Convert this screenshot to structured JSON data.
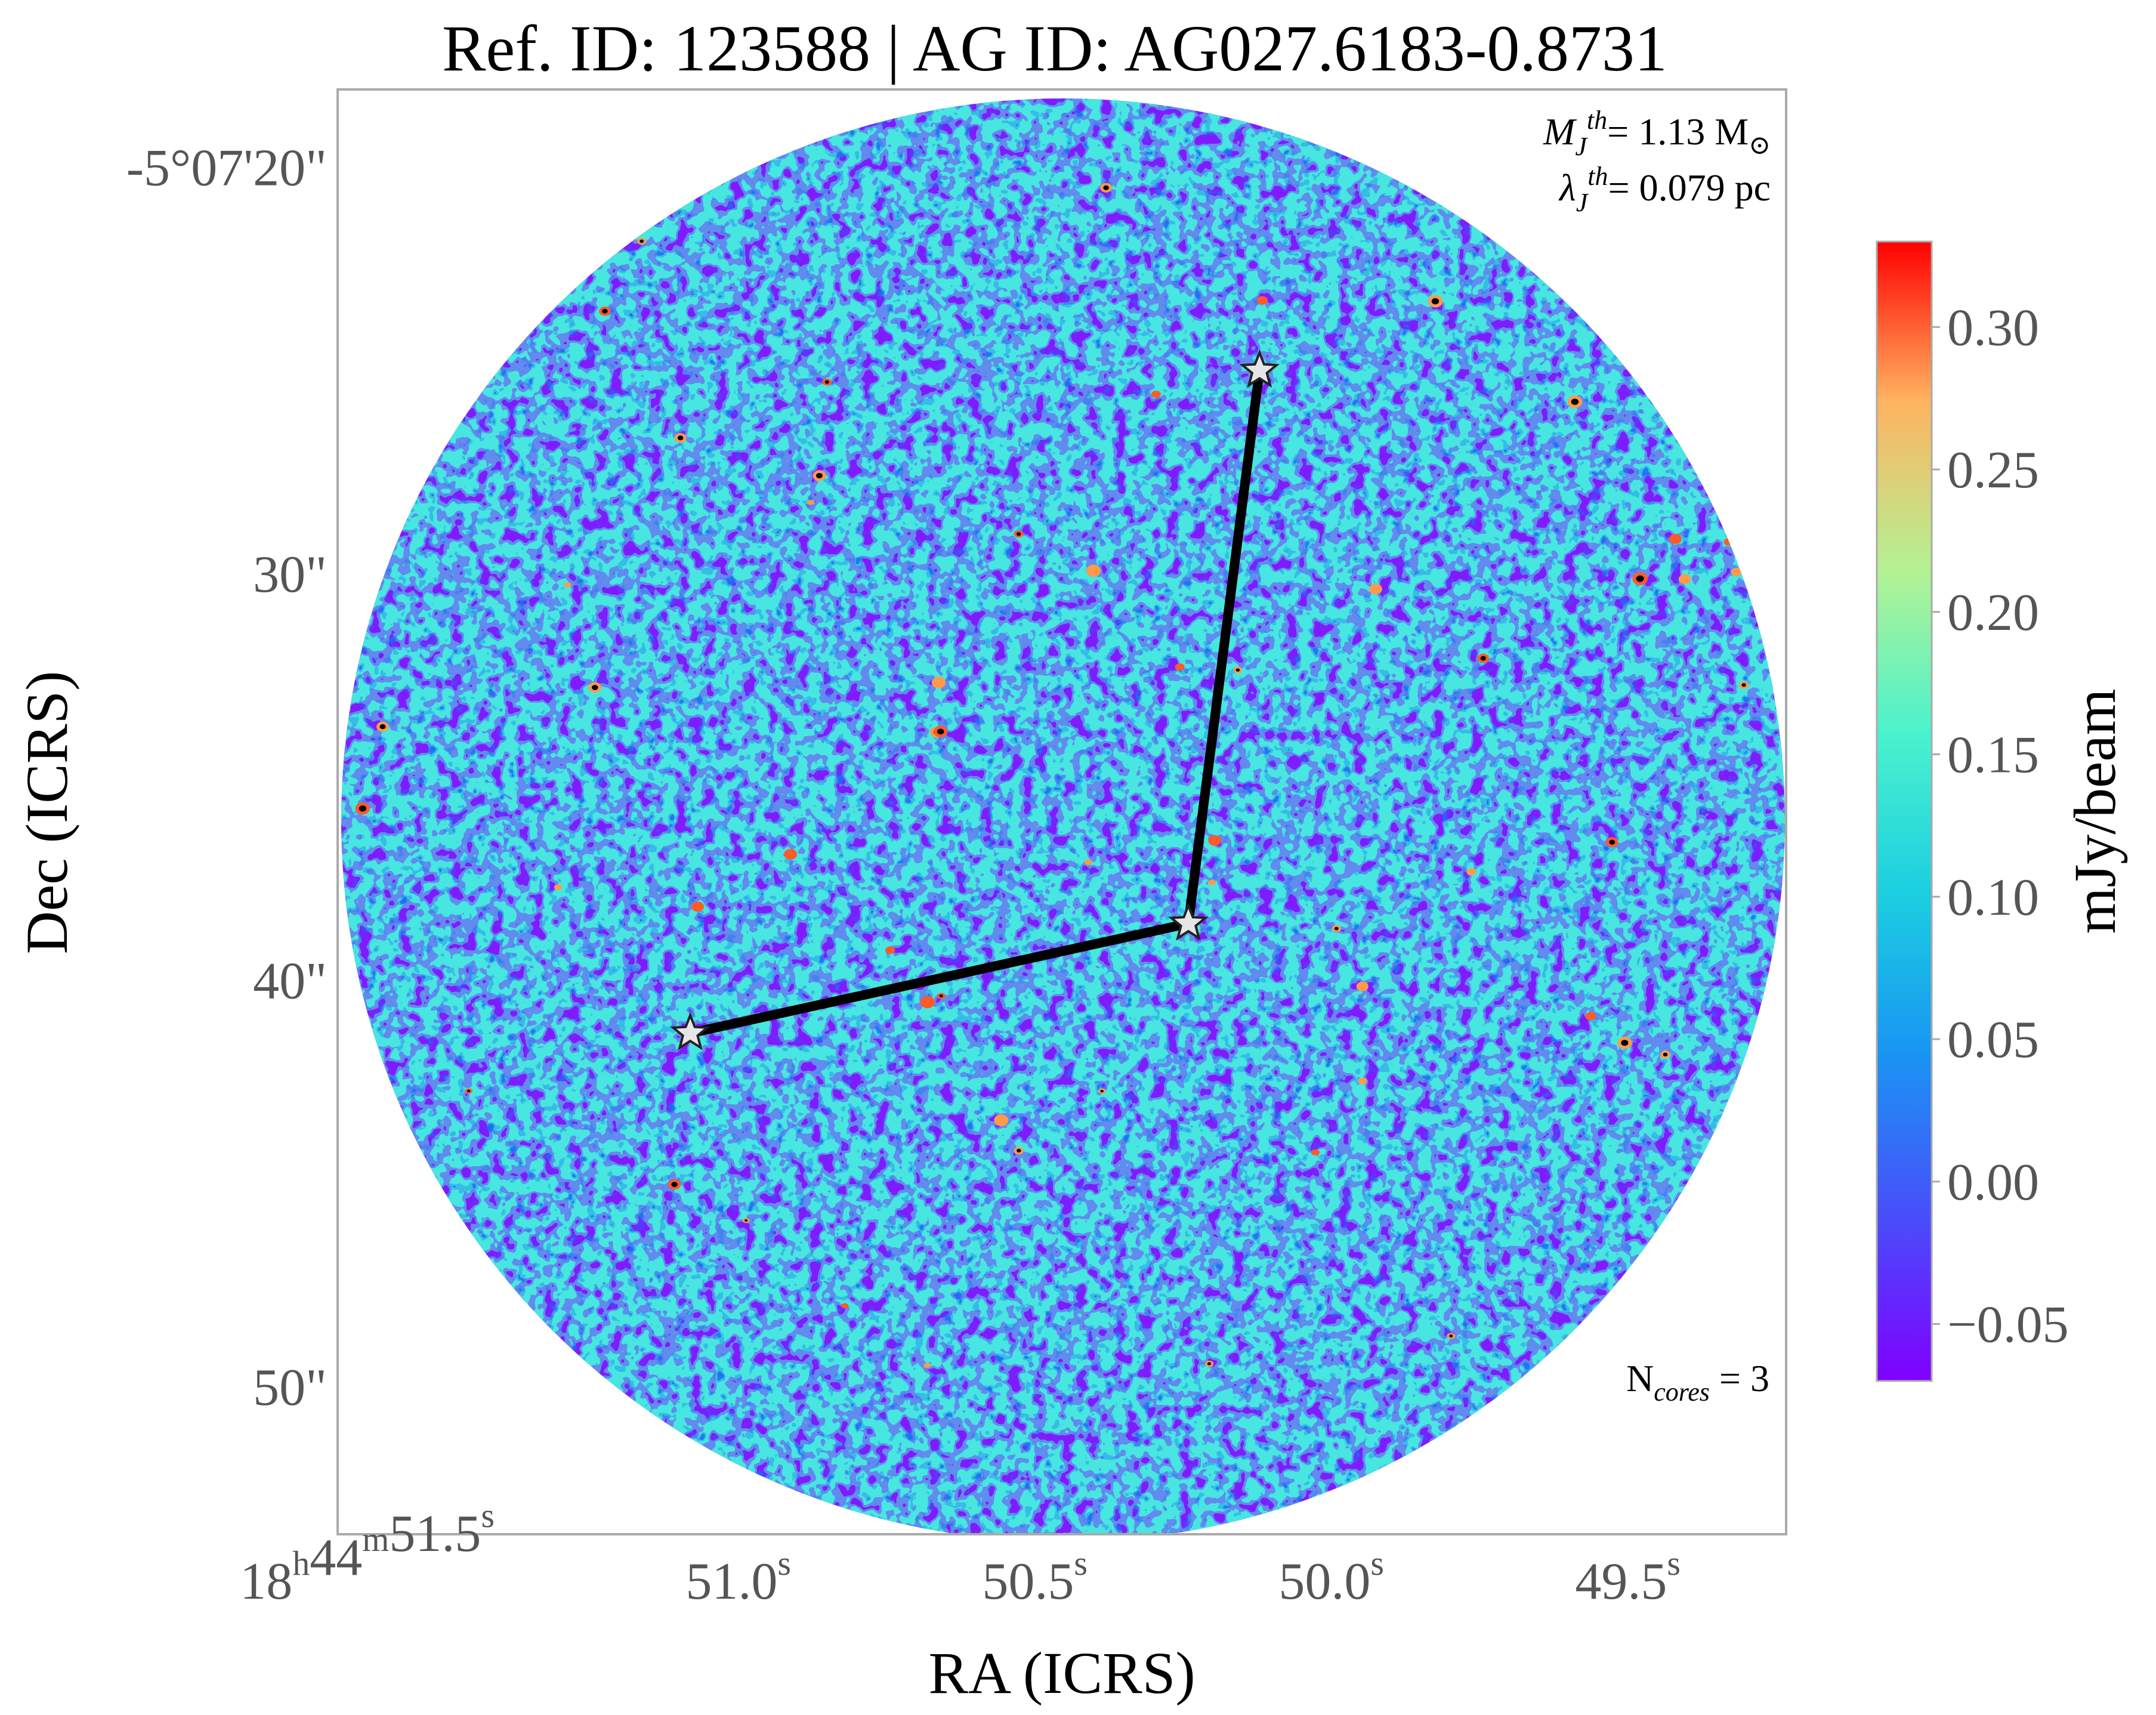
{
  "chart_data": {
    "type": "heatmap",
    "title": "Ref. ID: 123588 | AG ID: AG027.6183-0.8731",
    "xlabel": "RA (ICRS)",
    "ylabel": "Dec (ICRS)",
    "x_ticks": [
      {
        "value": 51.5,
        "h": "18",
        "h_unit": "h",
        "m": "44",
        "m_unit": "m",
        "s": "51.5",
        "s_unit": "s"
      },
      {
        "value": 51.0,
        "s": "51.0",
        "s_unit": "s"
      },
      {
        "value": 50.5,
        "s": "50.5",
        "s_unit": "s"
      },
      {
        "value": 50.0,
        "s": "50.0",
        "s_unit": "s"
      },
      {
        "value": 49.5,
        "s": "49.5",
        "s_unit": "s"
      }
    ],
    "y_ticks": [
      {
        "value": 20,
        "label": "-5°07'20\""
      },
      {
        "value": 30,
        "label": "30\""
      },
      {
        "value": 40,
        "label": "40\""
      },
      {
        "value": 50,
        "label": "50\""
      }
    ],
    "colorbar": {
      "label": "mJy/beam",
      "range": [
        -0.07,
        0.33
      ],
      "ticks": [
        0.3,
        0.25,
        0.2,
        0.15,
        0.1,
        0.05,
        0.0,
        -0.05
      ],
      "tick_labels": [
        "0.30",
        "0.25",
        "0.20",
        "0.15",
        "0.10",
        "0.05",
        "0.00",
        "−0.05"
      ],
      "colormap": "rainbow"
    },
    "annotations": {
      "mass": {
        "symbol": "M",
        "sub": "J",
        "sup": "th",
        "text": "= 1.13 M",
        "unit_symbol": "⊙"
      },
      "length": {
        "symbol": "λ",
        "sub": "J",
        "sup": "th",
        "text": "= 0.079 pc"
      },
      "ncores": {
        "prefix": "N",
        "sub": "cores",
        "text": " = 3"
      }
    },
    "cores": [
      {
        "ra_s": 50.33,
        "dec_arcsec": 38.6
      },
      {
        "ra_s": 50.21,
        "dec_arcsec": 25.0
      },
      {
        "ra_s": 51.17,
        "dec_arcsec": 41.3
      }
    ],
    "mst_edges": [
      [
        0,
        1
      ],
      [
        0,
        2
      ]
    ],
    "colors": {
      "background_field": "#7f1bff",
      "core_star": "#e6e6e6",
      "edge": "#000000",
      "frame": "#aaaaaa"
    }
  }
}
